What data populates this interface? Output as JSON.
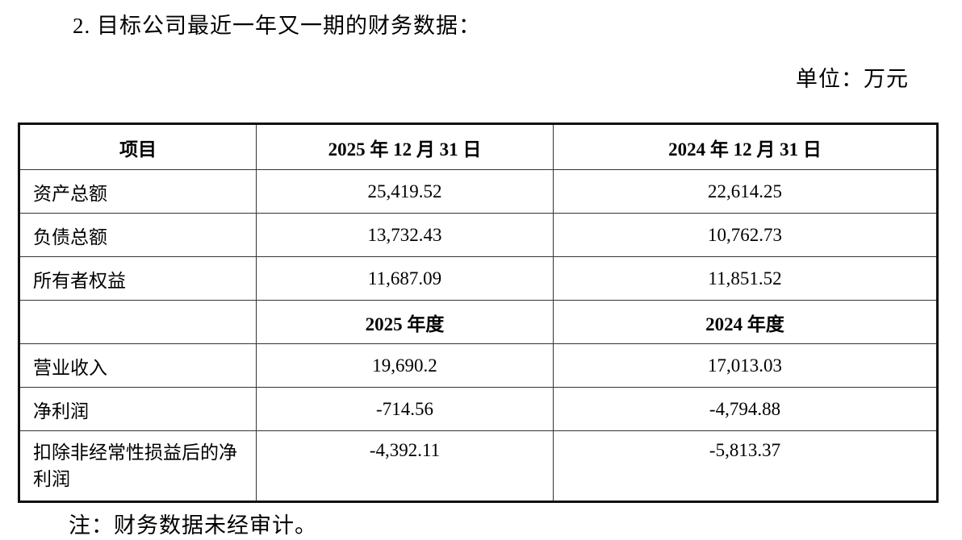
{
  "document": {
    "title": "2. 目标公司最近一年又一期的财务数据：",
    "unit_label": "单位：万元",
    "footnote": "注：财务数据未经审计。"
  },
  "table": {
    "header": {
      "item": "项目",
      "col_2025": "2025 年 12 月 31 日",
      "col_2024": "2024 年 12 月 31 日"
    },
    "balance_rows": [
      {
        "label": "资产总额",
        "v2025": "25,419.52",
        "v2024": "22,614.25"
      },
      {
        "label": "负债总额",
        "v2025": "13,732.43",
        "v2024": "10,762.73"
      },
      {
        "label": "所有者权益",
        "v2025": "11,687.09",
        "v2024": "11,851.52"
      }
    ],
    "period_header": {
      "item": "",
      "col_2025": "2025 年度",
      "col_2024": "2024 年度"
    },
    "income_rows": [
      {
        "label": "营业收入",
        "v2025": "19,690.2",
        "v2024": "17,013.03"
      },
      {
        "label": "净利润",
        "v2025": "-714.56",
        "v2024": "-4,794.88"
      },
      {
        "label": "扣除非经常性损益后的净利润",
        "v2025": "-4,392.11",
        "v2024": "-5,813.37"
      }
    ]
  }
}
